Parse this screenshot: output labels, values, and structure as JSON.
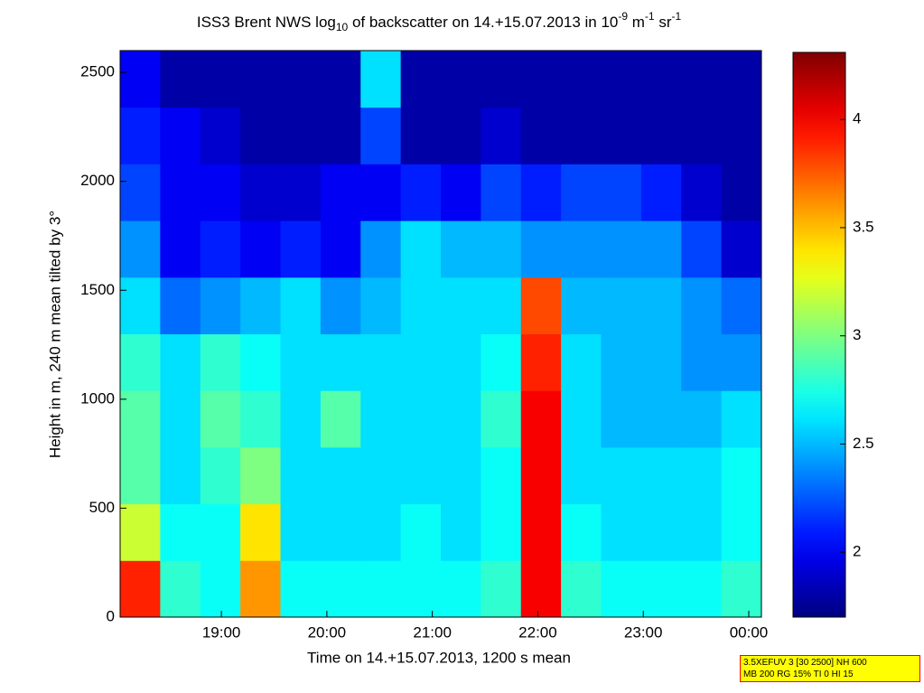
{
  "chart_data": {
    "type": "heatmap",
    "title": [
      "ISS3 Brent NWS log",
      "10",
      " of backscatter on 14.+15.07.2013 in 10",
      "-9",
      " m",
      "-1",
      " sr",
      "-1"
    ],
    "x_label": "Time on 14.+15.07.2013, 1200 s mean",
    "y_label": "Height in m, 240 m mean tilted by 3°",
    "xlim": [
      18.04,
      24.12
    ],
    "xticks": [
      {
        "value": 19,
        "label": "19:00"
      },
      {
        "value": 20,
        "label": "20:00"
      },
      {
        "value": 21,
        "label": "21:00"
      },
      {
        "value": 22,
        "label": "22:00"
      },
      {
        "value": 23,
        "label": "23:00"
      },
      {
        "value": 24,
        "label": "00:00"
      }
    ],
    "ylim": [
      0,
      2600
    ],
    "yticks": [
      0,
      500,
      1000,
      1500,
      2000,
      2500
    ],
    "xbins": [
      18.04,
      18.42,
      18.8,
      19.18,
      19.56,
      19.94,
      20.32,
      20.7,
      21.08,
      21.46,
      21.84,
      22.22,
      22.6,
      22.98,
      23.36,
      23.74,
      24.12
    ],
    "ybins": [
      0,
      260,
      520,
      780,
      1040,
      1300,
      1560,
      1820,
      2080,
      2340,
      2600
    ],
    "z": [
      [
        3.9,
        2.8,
        2.7,
        3.6,
        2.7,
        2.7,
        2.7,
        2.7,
        2.7,
        2.8,
        4.0,
        2.8,
        2.7,
        2.7,
        2.7,
        2.8
      ],
      [
        3.2,
        2.7,
        2.7,
        3.4,
        2.6,
        2.6,
        2.6,
        2.7,
        2.6,
        2.7,
        4.0,
        2.7,
        2.6,
        2.6,
        2.6,
        2.7
      ],
      [
        2.9,
        2.6,
        2.8,
        3.0,
        2.6,
        2.6,
        2.6,
        2.6,
        2.6,
        2.7,
        4.0,
        2.6,
        2.6,
        2.6,
        2.6,
        2.7
      ],
      [
        2.9,
        2.6,
        2.9,
        2.8,
        2.6,
        2.9,
        2.6,
        2.6,
        2.6,
        2.8,
        4.0,
        2.6,
        2.5,
        2.5,
        2.5,
        2.6
      ],
      [
        2.8,
        2.6,
        2.8,
        2.7,
        2.6,
        2.6,
        2.6,
        2.6,
        2.6,
        2.7,
        3.9,
        2.6,
        2.5,
        2.5,
        2.4,
        2.4
      ],
      [
        2.6,
        2.3,
        2.4,
        2.5,
        2.6,
        2.4,
        2.5,
        2.6,
        2.6,
        2.6,
        3.8,
        2.5,
        2.5,
        2.5,
        2.4,
        2.3
      ],
      [
        2.4,
        2.0,
        2.1,
        2.0,
        2.1,
        2.0,
        2.4,
        2.6,
        2.5,
        2.5,
        2.4,
        2.4,
        2.4,
        2.4,
        2.2,
        1.9
      ],
      [
        2.2,
        2.0,
        2.0,
        1.9,
        1.9,
        2.0,
        2.0,
        2.1,
        2.0,
        2.2,
        2.1,
        2.2,
        2.2,
        2.1,
        1.9,
        1.8
      ],
      [
        2.1,
        2.0,
        1.9,
        1.8,
        1.8,
        1.8,
        2.2,
        1.8,
        1.8,
        1.9,
        1.8,
        1.8,
        1.8,
        1.8,
        1.8,
        1.8
      ],
      [
        2.0,
        1.8,
        1.8,
        1.8,
        1.8,
        1.8,
        2.6,
        1.8,
        1.8,
        1.8,
        1.8,
        1.8,
        1.8,
        1.8,
        1.8,
        1.8
      ]
    ],
    "colormap": "jet",
    "clim": [
      1.7,
      4.31
    ],
    "cticks": [
      2,
      2.5,
      3,
      3.5,
      4
    ],
    "annotation": [
      "3.5XEFUV 3 [30 2500] NH 600",
      "MB 200 RG 15% TI 0 HI 15"
    ]
  }
}
